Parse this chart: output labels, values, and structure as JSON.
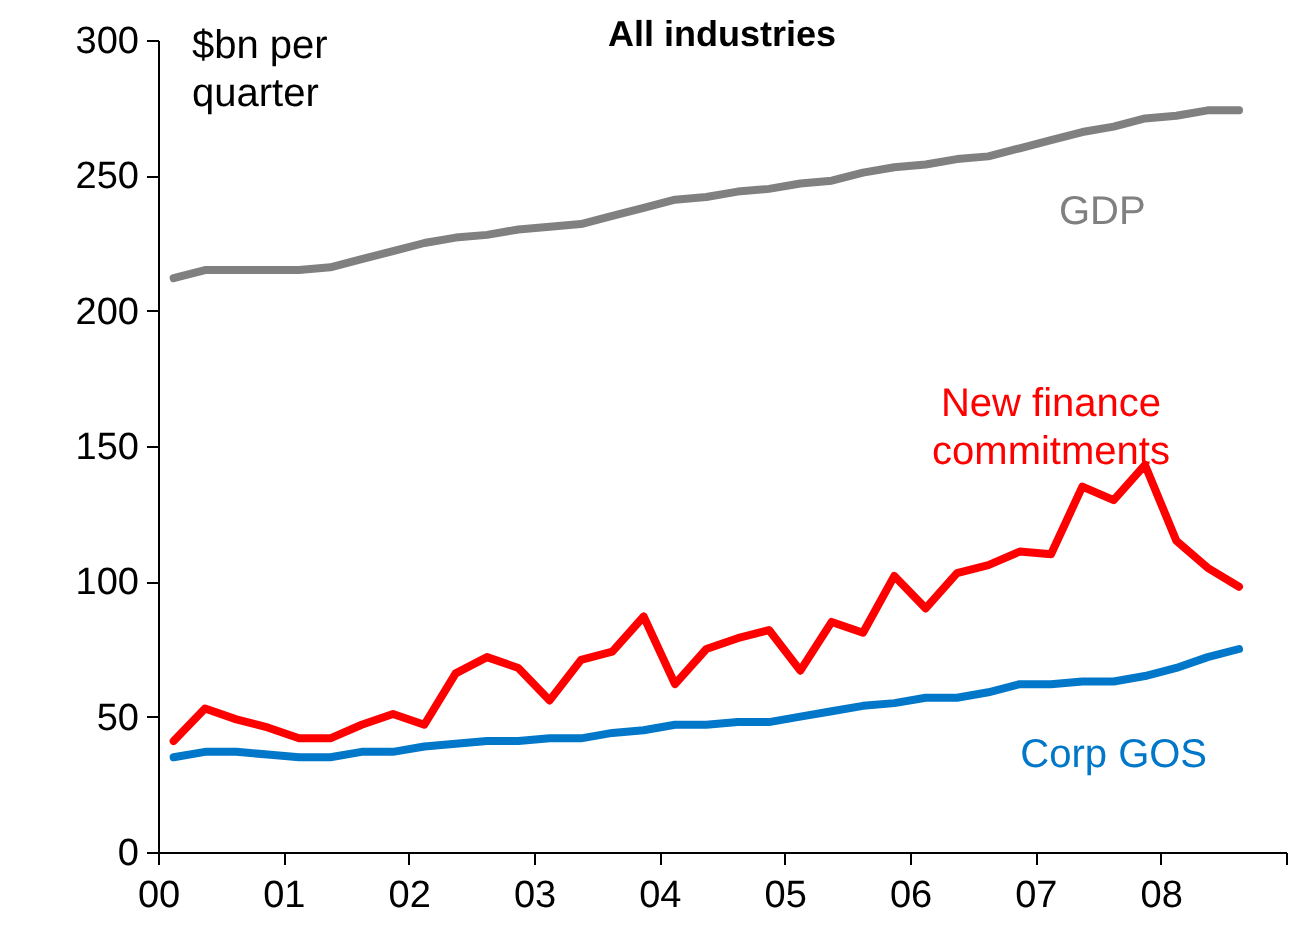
{
  "chart_data": {
    "type": "line",
    "title": "All industries",
    "ylabel": "$bn per quarter",
    "x": [
      2000.125,
      2000.375,
      2000.625,
      2000.875,
      2001.125,
      2001.375,
      2001.625,
      2001.875,
      2002.125,
      2002.375,
      2002.625,
      2002.875,
      2003.125,
      2003.375,
      2003.625,
      2003.875,
      2004.125,
      2004.375,
      2004.625,
      2004.875,
      2005.125,
      2005.375,
      2005.625,
      2005.875,
      2006.125,
      2006.375,
      2006.625,
      2006.875,
      2007.125,
      2007.375,
      2007.625,
      2007.875,
      2008.125,
      2008.375,
      2008.625
    ],
    "series": [
      {
        "name": "GDP",
        "color": "#808080",
        "values": [
          212,
          215,
          215,
          215,
          215,
          216,
          219,
          222,
          225,
          227,
          228,
          230,
          231,
          232,
          235,
          238,
          241,
          242,
          244,
          245,
          247,
          248,
          251,
          253,
          254,
          256,
          257,
          260,
          263,
          266,
          268,
          271,
          272,
          274,
          274
        ]
      },
      {
        "name": "New finance commitments",
        "color": "#ff0000",
        "values": [
          41,
          53,
          49,
          46,
          42,
          42,
          47,
          51,
          47,
          66,
          72,
          68,
          56,
          71,
          74,
          87,
          62,
          75,
          79,
          82,
          67,
          85,
          81,
          102,
          90,
          103,
          106,
          111,
          110,
          135,
          130,
          143,
          115,
          105,
          98
        ]
      },
      {
        "name": "Corp GOS",
        "color": "#0077c8",
        "values": [
          35,
          37,
          37,
          36,
          35,
          35,
          37,
          37,
          39,
          40,
          41,
          41,
          42,
          42,
          44,
          45,
          47,
          47,
          48,
          48,
          50,
          52,
          54,
          55,
          57,
          57,
          59,
          62,
          62,
          63,
          63,
          65,
          68,
          72,
          75
        ]
      }
    ],
    "xlim": [
      2000,
      2009
    ],
    "xticks": [
      {
        "value": 2000,
        "label": "00"
      },
      {
        "value": 2001,
        "label": "01"
      },
      {
        "value": 2002,
        "label": "02"
      },
      {
        "value": 2003,
        "label": "03"
      },
      {
        "value": 2004,
        "label": "04"
      },
      {
        "value": 2005,
        "label": "05"
      },
      {
        "value": 2006,
        "label": "06"
      },
      {
        "value": 2007,
        "label": "07"
      },
      {
        "value": 2008,
        "label": "08"
      },
      {
        "value": 2009,
        "label": null
      }
    ],
    "ylim": [
      0,
      300
    ],
    "yticks": [
      0,
      50,
      100,
      150,
      200,
      250,
      300
    ],
    "grid": false,
    "legend": false,
    "marker": "none",
    "line_style": "solid"
  }
}
